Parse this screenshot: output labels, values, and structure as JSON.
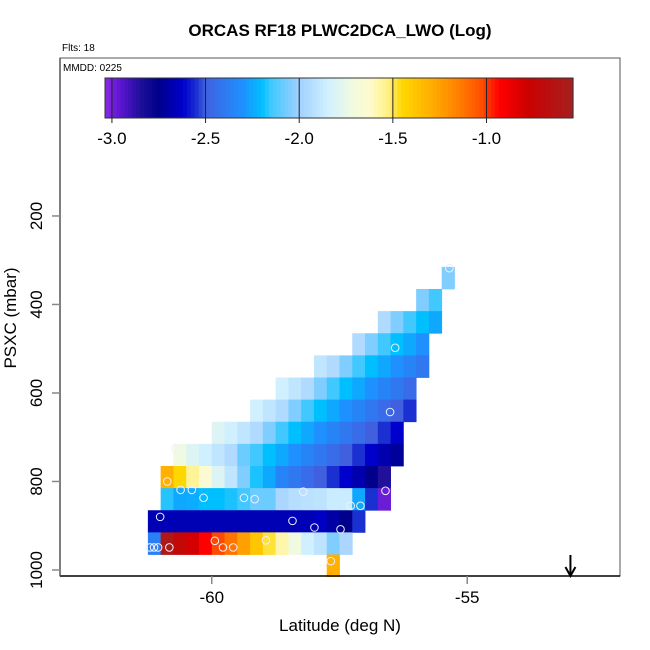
{
  "chart_data": {
    "type": "heatmap",
    "title": "ORCAS RF18 PLWC2DCA_LWO (Log)",
    "flights_label": "Flts: 18",
    "date_label": "MMDD: 0225",
    "xlabel": "Latitude (deg N)",
    "ylabel": "PSXC (mbar)",
    "xlim": [
      -62.97,
      -52.01
    ],
    "ylim": [
      1013.6,
      -157
    ],
    "xticks": [
      -60,
      -55
    ],
    "xtick_labels": [
      "-60",
      "-55"
    ],
    "yticks": [
      200,
      400,
      600,
      800,
      1000
    ],
    "ytick_labels": [
      "200",
      "400",
      "600",
      "800",
      "1000"
    ],
    "cell_width_deg": 0.25,
    "cell_height_mbar": 50,
    "colorbar": {
      "range": [
        -3.037,
        -0.538
      ],
      "ticks": [
        -3.0,
        -2.5,
        -2.0,
        -1.5,
        -1.0
      ],
      "tick_labels": [
        "-3.0",
        "-2.5",
        "-2.0",
        "-1.5",
        "-1.0"
      ],
      "stops": [
        [
          -3.037,
          "#8a2be2"
        ],
        [
          -2.95,
          "#5a14d0"
        ],
        [
          -2.85,
          "#20109a"
        ],
        [
          -2.75,
          "#00008b"
        ],
        [
          -2.62,
          "#0000cd"
        ],
        [
          -2.55,
          "#1a30d0"
        ],
        [
          -2.5,
          "#4060e0"
        ],
        [
          -2.4,
          "#3078f0"
        ],
        [
          -2.3,
          "#1e90ff"
        ],
        [
          -2.2,
          "#00bfff"
        ],
        [
          -2.15,
          "#40c8ff"
        ],
        [
          -2.0,
          "#a0d0ff"
        ],
        [
          -1.85,
          "#d0f0ff"
        ],
        [
          -1.72,
          "#f0fae0"
        ],
        [
          -1.62,
          "#fffacd"
        ],
        [
          -1.52,
          "#fff080"
        ],
        [
          -1.45,
          "#ffd700"
        ],
        [
          -1.3,
          "#ffb000"
        ],
        [
          -1.15,
          "#ff8000"
        ],
        [
          -1.03,
          "#ff5000"
        ],
        [
          -0.93,
          "#ff0000"
        ],
        [
          -0.78,
          "#cd0000"
        ],
        [
          -0.538,
          "#a52020"
        ]
      ]
    },
    "rows": [
      {
        "p": 340,
        "lat_start": -55.5,
        "values": [
          -2.05
        ]
      },
      {
        "p": 390,
        "lat_start": -56.0,
        "values": [
          -2.05,
          -2.15
        ]
      },
      {
        "p": 440,
        "lat_start": -56.75,
        "values": [
          -1.95,
          -2.05,
          -2.15,
          -2.2,
          -2.25
        ]
      },
      {
        "p": 490,
        "lat_start": -57.25,
        "values": [
          -1.95,
          -2.05,
          -2.15,
          -2.2,
          -2.25,
          -2.3
        ]
      },
      {
        "p": 540,
        "lat_start": -58.0,
        "values": [
          -1.9,
          -1.95,
          -2.05,
          -2.15,
          -2.2,
          -2.25,
          -2.3,
          -2.35,
          -2.4
        ]
      },
      {
        "p": 590,
        "lat_start": -58.75,
        "values": [
          -1.85,
          -1.9,
          -1.95,
          -2.05,
          -2.15,
          -2.2,
          -2.25,
          -2.3,
          -2.35,
          -2.4,
          -2.45
        ]
      },
      {
        "p": 640,
        "lat_start": -59.25,
        "values": [
          -1.85,
          -1.9,
          -1.95,
          -2.05,
          -2.15,
          -2.2,
          -2.25,
          -2.3,
          -2.35,
          -2.4,
          -2.45,
          -2.5,
          -2.55
        ]
      },
      {
        "p": 690,
        "lat_start": -60.0,
        "values": [
          -1.8,
          -1.85,
          -1.9,
          -1.95,
          -2.05,
          -2.15,
          -2.2,
          -2.25,
          -2.3,
          -2.35,
          -2.4,
          -2.45,
          -2.5,
          -2.55,
          -2.62
        ]
      },
      {
        "p": 740,
        "lat_start": -60.75,
        "values": [
          -1.72,
          -1.8,
          -1.85,
          -1.9,
          -1.95,
          -2.08,
          -2.15,
          -2.2,
          -2.25,
          -2.3,
          -2.35,
          -2.4,
          -2.45,
          -2.5,
          -2.55,
          -2.62,
          -2.68,
          -2.72
        ]
      },
      {
        "p": 790,
        "lat_start": -61.0,
        "values": [
          -1.3,
          -1.45,
          -1.55,
          -1.65,
          -1.8,
          -1.9,
          -2.05,
          -2.18,
          -2.25,
          -2.35,
          -2.4,
          -2.45,
          -2.5,
          -2.55,
          -2.62,
          -2.68,
          -2.75,
          -2.85
        ]
      },
      {
        "p": 840,
        "lat_start": -61.0,
        "values": [
          -2.17,
          -2.25,
          -2.24,
          -2.2,
          -2.2,
          -2.18,
          -2.15,
          -2.08,
          -2.08,
          -1.97,
          -1.93,
          -1.92,
          -1.91,
          -1.87,
          -1.87,
          -2.25,
          -2.55,
          -2.98
        ]
      },
      {
        "p": 890,
        "lat_start": -61.25,
        "values": [
          -2.67,
          -2.67,
          -2.67,
          -2.67,
          -2.67,
          -2.67,
          -2.67,
          -2.67,
          -2.67,
          -2.67,
          -2.67,
          -2.67,
          -2.67,
          -2.64,
          -2.7,
          -2.75,
          -2.55
        ]
      },
      {
        "p": 940,
        "lat_start": -61.25,
        "values": [
          -2.37,
          -0.6,
          -0.72,
          -0.8,
          -0.93,
          -1.02,
          -1.12,
          -1.25,
          -1.38,
          -1.48,
          -1.58,
          -1.72,
          -1.85,
          -1.91,
          -2.05,
          -1.97
        ]
      },
      {
        "p": 990,
        "lat_start": -57.75,
        "values": [
          -1.3
        ]
      }
    ],
    "observations": [
      [
        -55.35,
        318
      ],
      [
        -56.41,
        498
      ],
      [
        -56.51,
        643
      ],
      [
        -60.71,
        725
      ],
      [
        -60.87,
        800
      ],
      [
        -60.61,
        819
      ],
      [
        -60.39,
        819
      ],
      [
        -60.16,
        837
      ],
      [
        -59.37,
        837
      ],
      [
        -59.16,
        840
      ],
      [
        -58.21,
        823
      ],
      [
        -57.28,
        855
      ],
      [
        -57.09,
        855
      ],
      [
        -56.6,
        821
      ],
      [
        -61.01,
        880
      ],
      [
        -58.42,
        889
      ],
      [
        -57.99,
        904
      ],
      [
        -57.48,
        908
      ],
      [
        -61.21,
        949
      ],
      [
        -61.13,
        949
      ],
      [
        -61.05,
        949
      ],
      [
        -60.83,
        949
      ],
      [
        -59.94,
        934
      ],
      [
        -59.78,
        949
      ],
      [
        -59.58,
        949
      ],
      [
        -58.94,
        933
      ],
      [
        -57.67,
        980
      ]
    ],
    "marker_arrow_lat": -52.98
  }
}
